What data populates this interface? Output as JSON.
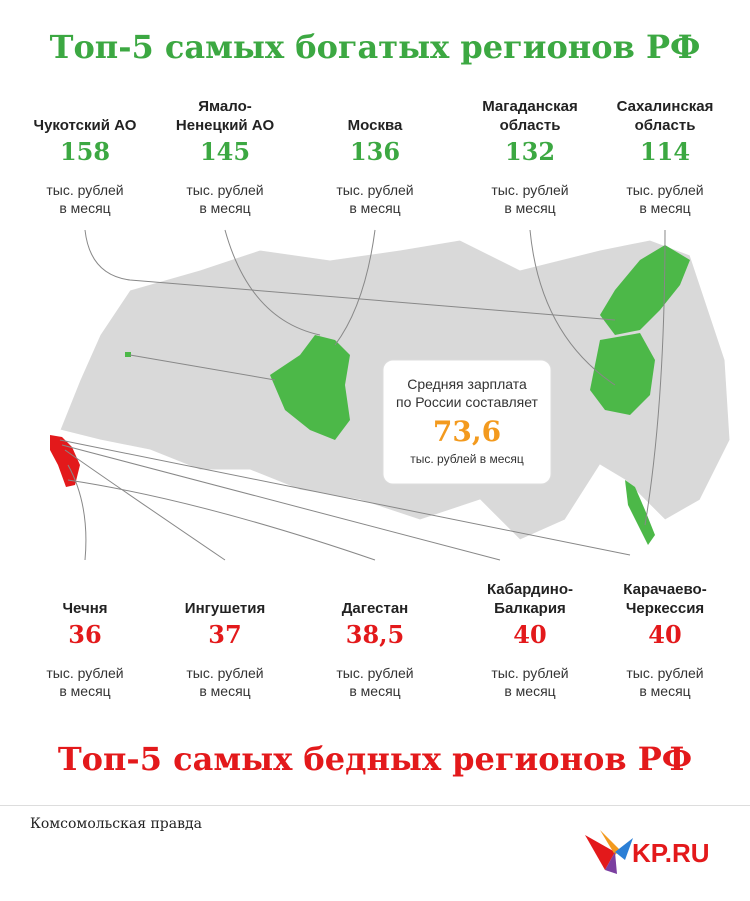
{
  "header": {
    "title": "Топ-5 самых богатых регионов РФ"
  },
  "richest": [
    {
      "name": "Чукотский АО",
      "value": "158",
      "unit": "тыс. рублей\nв месяц"
    },
    {
      "name": "Ямало-\nНенецкий АО",
      "value": "145",
      "unit": "тыс. рублей\nв месяц"
    },
    {
      "name": "Москва",
      "value": "136",
      "unit": "тыс. рублей\nв месяц"
    },
    {
      "name": "Магаданская\nобласть",
      "value": "132",
      "unit": "тыс. рублей\nв месяц"
    },
    {
      "name": "Сахалинская\nобласть",
      "value": "114",
      "unit": "тыс. рублей\nв месяц"
    }
  ],
  "average": {
    "label": "Средняя зарплата\nпо России составляет",
    "value": "73,6",
    "unit": "тыс. рублей в месяц"
  },
  "poorest": [
    {
      "name": "Чечня",
      "value": "36",
      "unit": "тыс. рублей\nв месяц"
    },
    {
      "name": "Ингушетия",
      "value": "37",
      "unit": "тыс. рублей\nв месяц"
    },
    {
      "name": "Дагестан",
      "value": "38,5",
      "unit": "тыс. рублей\nв месяц"
    },
    {
      "name": "Кабардино-\nБалкария",
      "value": "40",
      "unit": "тыс. рублей\nв месяц"
    },
    {
      "name": "Карачаево-\nЧеркессия",
      "value": "40",
      "unit": "тыс. рублей\nв месяц"
    }
  ],
  "footer": {
    "title": "Топ-5 самых бедных регионов РФ",
    "source": "Комсомольская правда",
    "logo": "KP.RU"
  }
}
